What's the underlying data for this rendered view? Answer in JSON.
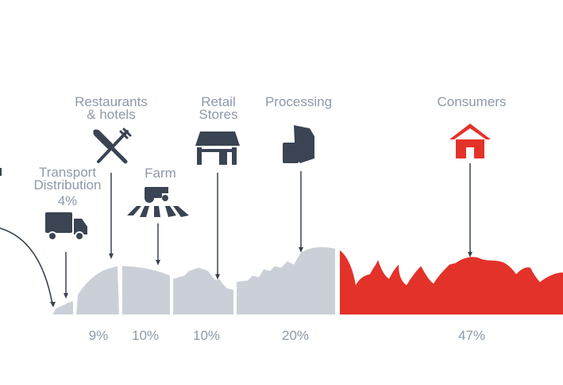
{
  "stages": [
    {
      "id": "transport",
      "label_lines": [
        "Transport",
        "Distribution"
      ],
      "percent": "4%"
    },
    {
      "id": "restaurants",
      "label_lines": [
        "Restaurants",
        "& hotels"
      ],
      "percent": "9%"
    },
    {
      "id": "farm",
      "label_lines": [
        "Farm"
      ],
      "percent": "10%"
    },
    {
      "id": "retail",
      "label_lines": [
        "Retail",
        "Stores"
      ],
      "percent": "10%"
    },
    {
      "id": "processing",
      "label_lines": [
        "Processing"
      ],
      "percent": "20%"
    },
    {
      "id": "consumers",
      "label_lines": [
        "Consumers"
      ],
      "percent": "47%"
    }
  ],
  "colors": {
    "label": "#8e99a8",
    "icon": "#3a4452",
    "waste": "#cbd0d8",
    "consumer": "#e3322a"
  }
}
